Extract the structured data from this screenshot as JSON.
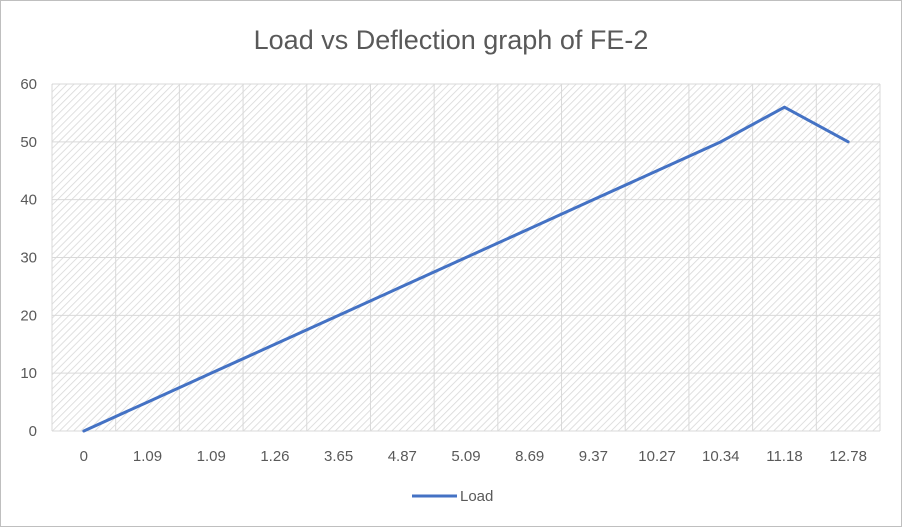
{
  "chart_data": {
    "type": "line",
    "title": "Load vs Deflection graph of FE-2",
    "xlabel": "",
    "ylabel": "",
    "categories": [
      "0",
      "1.09",
      "1.09",
      "1.26",
      "3.65",
      "4.87",
      "5.09",
      "8.69",
      "9.37",
      "10.27",
      "10.34",
      "11.18",
      "12.78"
    ],
    "series": [
      {
        "name": "Load",
        "values": [
          0,
          5,
          10,
          15,
          20,
          25,
          30,
          35,
          40,
          45,
          50,
          56,
          50
        ]
      }
    ],
    "ylim": [
      0,
      60
    ],
    "yticks": [
      0,
      10,
      20,
      30,
      40,
      50,
      60
    ],
    "grid": true,
    "legend": "bottom",
    "colors": {
      "series": "#4472c4",
      "text": "#595959",
      "grid": "#d9d9d9",
      "axis": "#d9d9d9"
    }
  }
}
